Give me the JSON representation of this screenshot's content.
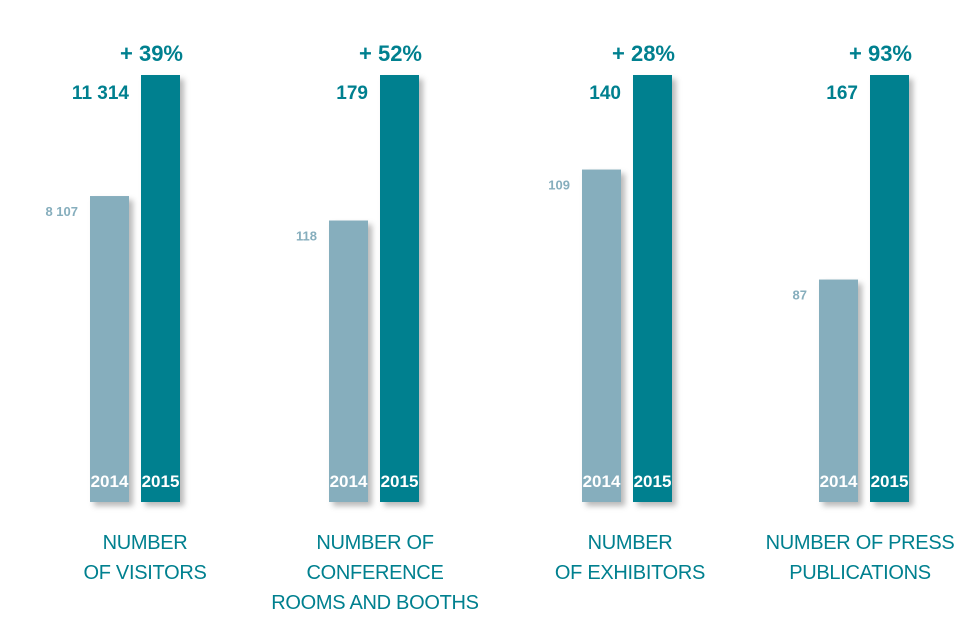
{
  "chart_data": [
    {
      "type": "bar",
      "categories": [
        "2014",
        "2015"
      ],
      "values": [
        8107,
        11314
      ],
      "value_labels": [
        "8 107",
        "11 314"
      ],
      "growth_label": "+ 39%",
      "xlabel": "NUMBER\nOF VISITORS"
    },
    {
      "type": "bar",
      "categories": [
        "2014",
        "2015"
      ],
      "values": [
        118,
        179
      ],
      "value_labels": [
        "118",
        "179"
      ],
      "growth_label": "+ 52%",
      "xlabel": "NUMBER OF CONFERENCE\nROOMS AND BOOTHS"
    },
    {
      "type": "bar",
      "categories": [
        "2014",
        "2015"
      ],
      "values": [
        109,
        140
      ],
      "value_labels": [
        "109",
        "140"
      ],
      "growth_label": "+ 28%",
      "xlabel": "NUMBER\nOF EXHIBITORS"
    },
    {
      "type": "bar",
      "categories": [
        "2014",
        "2015"
      ],
      "values": [
        87,
        167
      ],
      "value_labels": [
        "87",
        "167"
      ],
      "growth_label": "+ 93%",
      "xlabel": "NUMBER OF PRESS\nPUBLICATIONS"
    }
  ],
  "colors": {
    "bar_2014": "#86aebd",
    "bar_2015": "#00808f",
    "label_2014": "#86aebd",
    "label_2015": "#00808f",
    "growth": "#00808f",
    "caption": "#00808f"
  }
}
